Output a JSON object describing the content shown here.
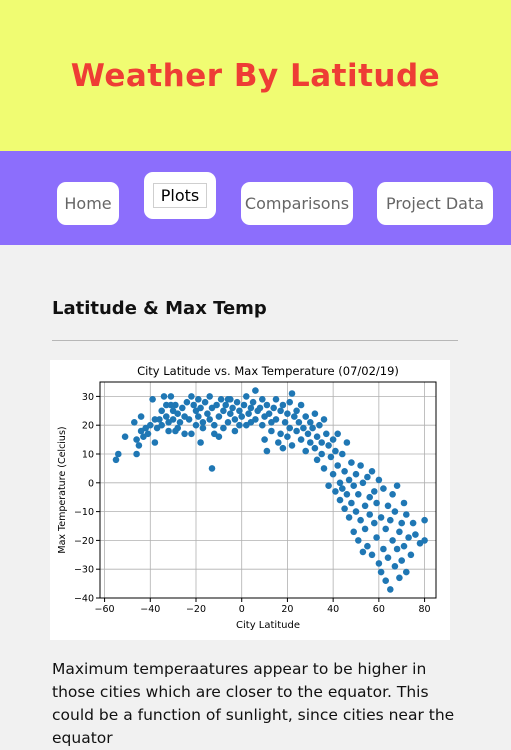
{
  "header": {
    "title": "Weather By Latitude"
  },
  "nav": {
    "items": [
      {
        "label": "Home",
        "active": false
      },
      {
        "label": "Plots",
        "active": true
      },
      {
        "label": "Comparisons",
        "active": false
      },
      {
        "label": "Project Data",
        "active": false
      }
    ]
  },
  "main": {
    "section_title": "Latitude & Max Temp",
    "description": "Maximum temperaatures appear to be higher in those cities which are closer to the equator. This could be a function of sunlight, since cities near the equator"
  },
  "colors": {
    "header_bg": "#f0fc72",
    "title_color": "#ee3d35",
    "nav_bg": "#8c6efc",
    "marker": "#1f77b4"
  },
  "chart_data": {
    "type": "scatter",
    "title": "City Latitude vs. Max Temperature (07/02/19)",
    "xlabel": "City Latitude",
    "ylabel": "Max Temperature (Celcius)",
    "xlim": [
      -62,
      85
    ],
    "ylim": [
      -40,
      35
    ],
    "xticks": [
      -60,
      -40,
      -20,
      0,
      20,
      40,
      60,
      80
    ],
    "yticks": [
      -40,
      -30,
      -20,
      -10,
      0,
      10,
      20,
      30
    ],
    "grid": true,
    "points": [
      [
        -55,
        8
      ],
      [
        -54,
        10
      ],
      [
        -51,
        16
      ],
      [
        -47,
        21
      ],
      [
        -46,
        15
      ],
      [
        -46,
        10
      ],
      [
        -45,
        13
      ],
      [
        -44,
        18
      ],
      [
        -43,
        16
      ],
      [
        -42,
        19
      ],
      [
        -41,
        17
      ],
      [
        -40,
        20
      ],
      [
        -39,
        29
      ],
      [
        -38,
        22
      ],
      [
        -38,
        14
      ],
      [
        -37,
        19
      ],
      [
        -36,
        22
      ],
      [
        -35,
        25
      ],
      [
        -35,
        20
      ],
      [
        -34,
        30
      ],
      [
        -33,
        27
      ],
      [
        -33,
        23
      ],
      [
        -32,
        21
      ],
      [
        -32,
        18
      ],
      [
        -31,
        30
      ],
      [
        -30,
        25
      ],
      [
        -30,
        22
      ],
      [
        -29,
        27
      ],
      [
        -28,
        24
      ],
      [
        -28,
        19
      ],
      [
        -27,
        21
      ],
      [
        -26,
        26
      ],
      [
        -25,
        23
      ],
      [
        -25,
        17
      ],
      [
        -24,
        28
      ],
      [
        -23,
        22
      ],
      [
        -22,
        30
      ],
      [
        -22,
        17
      ],
      [
        -21,
        27
      ],
      [
        -20,
        25
      ],
      [
        -20,
        20
      ],
      [
        -19,
        29
      ],
      [
        -19,
        23
      ],
      [
        -18,
        26
      ],
      [
        -17,
        21
      ],
      [
        -17,
        19
      ],
      [
        -16,
        28
      ],
      [
        -15,
        24
      ],
      [
        -14,
        30
      ],
      [
        -14,
        22
      ],
      [
        -13,
        26
      ],
      [
        -13,
        5
      ],
      [
        -12,
        20
      ],
      [
        -12,
        17
      ],
      [
        -11,
        27
      ],
      [
        -10,
        23
      ],
      [
        -10,
        16
      ],
      [
        -9,
        29
      ],
      [
        -8,
        25
      ],
      [
        -8,
        19
      ],
      [
        -7,
        27
      ],
      [
        -6,
        21
      ],
      [
        -5,
        24
      ],
      [
        -5,
        29
      ],
      [
        -4,
        26
      ],
      [
        -3,
        22
      ],
      [
        -3,
        18
      ],
      [
        -2,
        28
      ],
      [
        -1,
        25
      ],
      [
        -1,
        20
      ],
      [
        0,
        23
      ],
      [
        1,
        27
      ],
      [
        2,
        30
      ],
      [
        3,
        24
      ],
      [
        4,
        21
      ],
      [
        4,
        26
      ],
      [
        5,
        28
      ],
      [
        6,
        22
      ],
      [
        6,
        32
      ],
      [
        7,
        25
      ],
      [
        8,
        26
      ],
      [
        9,
        29
      ],
      [
        9,
        20
      ],
      [
        10,
        23
      ],
      [
        10,
        15
      ],
      [
        11,
        27
      ],
      [
        11,
        11
      ],
      [
        12,
        24
      ],
      [
        13,
        21
      ],
      [
        13,
        18
      ],
      [
        14,
        26
      ],
      [
        15,
        29
      ],
      [
        15,
        22
      ],
      [
        16,
        14
      ],
      [
        17,
        25
      ],
      [
        17,
        17
      ],
      [
        18,
        27
      ],
      [
        18,
        12
      ],
      [
        19,
        21
      ],
      [
        20,
        24
      ],
      [
        20,
        16
      ],
      [
        21,
        28
      ],
      [
        21,
        19
      ],
      [
        22,
        13
      ],
      [
        22,
        31
      ],
      [
        23,
        23
      ],
      [
        24,
        18
      ],
      [
        24,
        25
      ],
      [
        25,
        21
      ],
      [
        26,
        15
      ],
      [
        26,
        27
      ],
      [
        27,
        19
      ],
      [
        28,
        23
      ],
      [
        28,
        11
      ],
      [
        29,
        17
      ],
      [
        30,
        21
      ],
      [
        30,
        14
      ],
      [
        31,
        19
      ],
      [
        32,
        12
      ],
      [
        32,
        24
      ],
      [
        33,
        16
      ],
      [
        33,
        8
      ],
      [
        34,
        20
      ],
      [
        35,
        14
      ],
      [
        35,
        10
      ],
      [
        36,
        22
      ],
      [
        36,
        5
      ],
      [
        37,
        17
      ],
      [
        38,
        13
      ],
      [
        38,
        -1
      ],
      [
        39,
        9
      ],
      [
        40,
        15
      ],
      [
        40,
        3
      ],
      [
        41,
        11
      ],
      [
        41,
        -3
      ],
      [
        42,
        6
      ],
      [
        42,
        17
      ],
      [
        43,
        0
      ],
      [
        43,
        -6
      ],
      [
        44,
        10
      ],
      [
        44,
        -2
      ],
      [
        45,
        4
      ],
      [
        45,
        -9
      ],
      [
        46,
        14
      ],
      [
        46,
        -4
      ],
      [
        47,
        1
      ],
      [
        47,
        -12
      ],
      [
        48,
        7
      ],
      [
        48,
        -7
      ],
      [
        49,
        -1
      ],
      [
        49,
        -17
      ],
      [
        50,
        3
      ],
      [
        50,
        -10
      ],
      [
        51,
        -4
      ],
      [
        51,
        -20
      ],
      [
        52,
        6
      ],
      [
        52,
        -13
      ],
      [
        53,
        0
      ],
      [
        53,
        -24
      ],
      [
        54,
        -8
      ],
      [
        54,
        -16
      ],
      [
        55,
        2
      ],
      [
        55,
        -22
      ],
      [
        56,
        -5
      ],
      [
        56,
        -11
      ],
      [
        57,
        4
      ],
      [
        57,
        -25
      ],
      [
        58,
        -14
      ],
      [
        58,
        -3
      ],
      [
        59,
        -19
      ],
      [
        59,
        -7
      ],
      [
        60,
        -28
      ],
      [
        60,
        1
      ],
      [
        61,
        -12
      ],
      [
        61,
        -31
      ],
      [
        62,
        -23
      ],
      [
        62,
        -2
      ],
      [
        63,
        -16
      ],
      [
        63,
        -34
      ],
      [
        64,
        -8
      ],
      [
        64,
        -26
      ],
      [
        65,
        -37
      ],
      [
        65,
        -13
      ],
      [
        66,
        -20
      ],
      [
        66,
        -4
      ],
      [
        67,
        -29
      ],
      [
        67,
        -10
      ],
      [
        68,
        -23
      ],
      [
        68,
        -1
      ],
      [
        69,
        -17
      ],
      [
        69,
        -33
      ],
      [
        70,
        -27
      ],
      [
        70,
        -14
      ],
      [
        71,
        -7
      ],
      [
        71,
        -22
      ],
      [
        72,
        -31
      ],
      [
        72,
        -11
      ],
      [
        73,
        -19
      ],
      [
        74,
        -25
      ],
      [
        75,
        -14
      ],
      [
        76,
        -18
      ],
      [
        78,
        -21
      ],
      [
        80,
        -13
      ],
      [
        80,
        -20
      ],
      [
        -44,
        23
      ],
      [
        -31,
        27
      ],
      [
        -29,
        18
      ],
      [
        -18,
        14
      ],
      [
        -6,
        29
      ],
      [
        2,
        20
      ]
    ]
  }
}
